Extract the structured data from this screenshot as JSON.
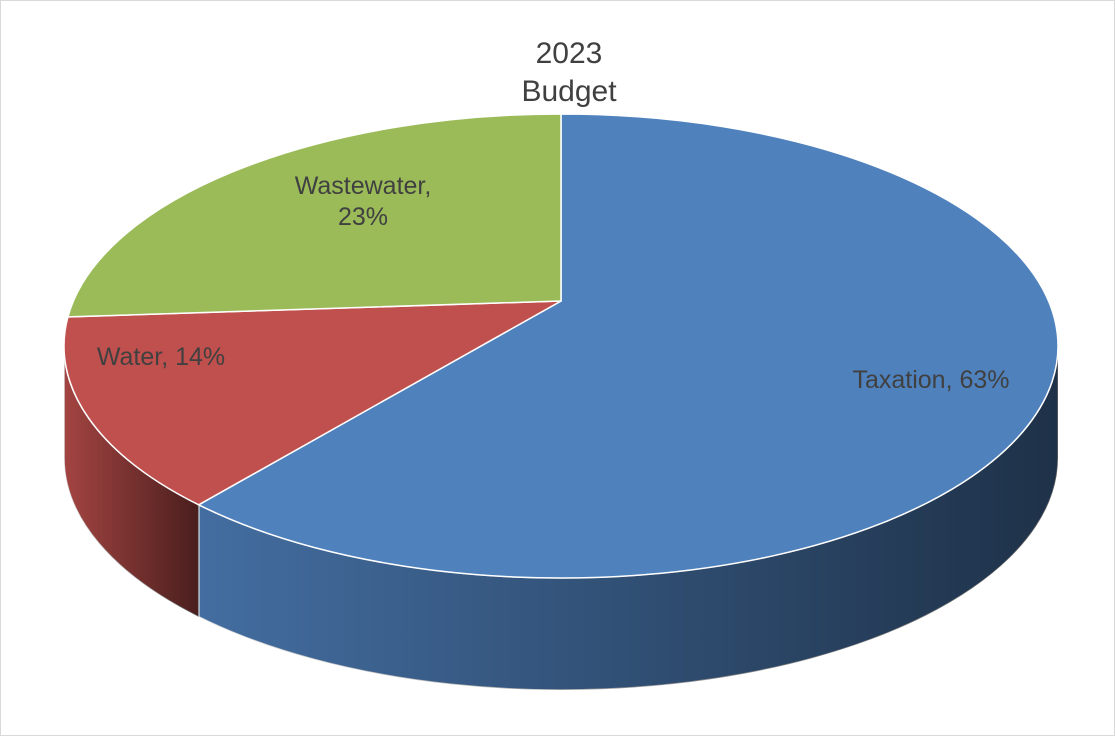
{
  "chart_data": {
    "type": "pie",
    "title": "2023 Budget",
    "categories": [
      "Taxation",
      "Water",
      "Wastewater"
    ],
    "values": [
      63,
      14,
      23
    ],
    "value_labels": [
      "Taxation, 63%",
      "Water, 14%",
      "Wastewater, 23%"
    ],
    "colors": [
      "#4f81bd",
      "#c0504d",
      "#9bbb59"
    ]
  }
}
